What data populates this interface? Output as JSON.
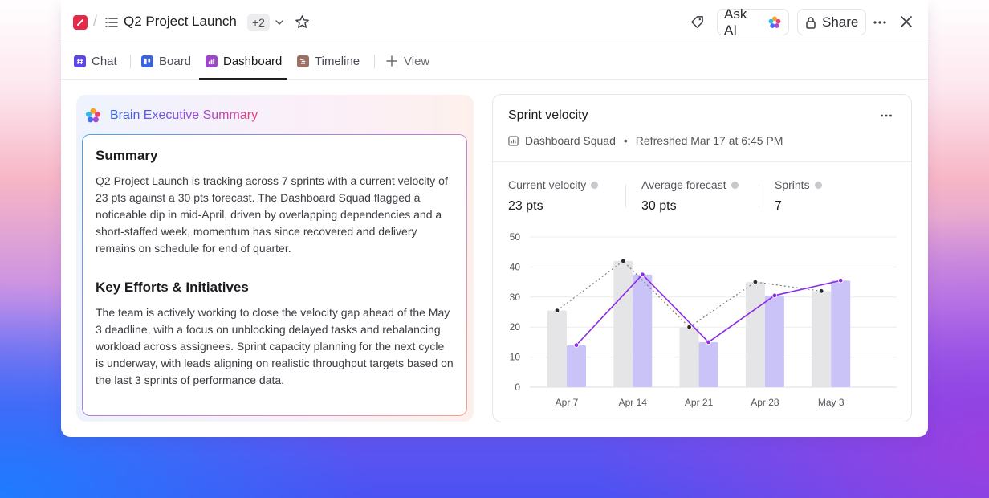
{
  "header": {
    "project_title": "Q2 Project Launch",
    "more_badge": "+2",
    "ask_ai_label": "Ask AI",
    "share_label": "Share",
    "icons": [
      "app-icon",
      "list-icon",
      "chevron-down-icon",
      "star-icon",
      "tag-icon",
      "brain-icon",
      "lock-icon",
      "more-icon",
      "close-icon"
    ]
  },
  "tabs": [
    {
      "label": "Chat",
      "color": "#5b46e6",
      "active": false
    },
    {
      "label": "Board",
      "color": "#3a63e0",
      "active": false
    },
    {
      "label": "Dashboard",
      "color": "#9f45c9",
      "active": true
    },
    {
      "label": "Timeline",
      "color": "#9b6f61",
      "active": false
    },
    {
      "label": "View",
      "active": false
    }
  ],
  "brain": {
    "title": "Brain Executive Summary",
    "summary_heading": "Summary",
    "summary_text": "Q2 Project Launch is tracking across 7 sprints with a current velocity of 23 pts against a 30 pts forecast. The Dashboard Squad flagged a noticeable dip in mid-April, driven by overlapping dependencies and a short-staffed week, momentum has since recovered and delivery remains on schedule for end of quarter.",
    "efforts_heading": "Key Efforts & Initiatives",
    "efforts_text": "The team is actively working to close the velocity gap ahead of the May 3 deadline, with a focus on unblocking delayed tasks and rebalancing workload across assignees. Sprint capacity planning for the next cycle is underway, with leads aligning on realistic throughput targets based on the last 3 sprints of performance data."
  },
  "velocity": {
    "title": "Sprint velocity",
    "team": "Dashboard Squad",
    "refreshed": "Refreshed Mar 17 at 6:45 PM",
    "stats": [
      {
        "label": "Current velocity",
        "value": "23 pts"
      },
      {
        "label": "Average forecast",
        "value": "30 pts"
      },
      {
        "label": "Sprints",
        "value": "7"
      }
    ]
  },
  "chart_data": {
    "type": "bar",
    "categories": [
      "Apr 7",
      "Apr 14",
      "Apr 21",
      "Apr 28",
      "May 3"
    ],
    "series": [
      {
        "values": [
          25.5,
          42,
          20,
          35,
          32
        ],
        "color": "#e5e5e8",
        "line_color": "#7a7a80",
        "line_style": "dotted"
      },
      {
        "values": [
          14,
          37.5,
          15,
          30.5,
          35.5
        ],
        "color": "#c9c3f7",
        "line_color": "#8a2be6",
        "line_style": "solid"
      }
    ],
    "ylim": [
      0,
      50
    ],
    "yticks": [
      0,
      10,
      20,
      30,
      40,
      50
    ],
    "grid": true
  }
}
